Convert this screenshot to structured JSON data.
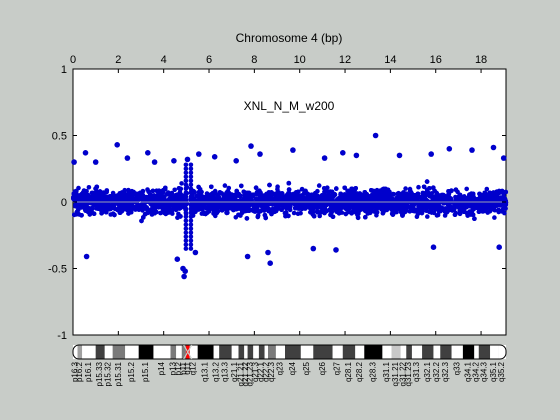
{
  "chart_data": {
    "type": "scatter",
    "title": "Chromosome 4 (bp)",
    "annotation": "XNL_N_M_w200",
    "x_tick_labels": [
      "0",
      "2",
      "4",
      "6",
      "8",
      "10",
      "12",
      "14",
      "16",
      "18"
    ],
    "y_tick_labels": [
      "1",
      "0.5",
      "0",
      "-0.5",
      "-1"
    ],
    "x_ticks": [
      0,
      2,
      4,
      6,
      8,
      10,
      12,
      14,
      16,
      18
    ],
    "y_ticks": [
      1,
      0.5,
      0,
      -0.5,
      -1
    ],
    "xlim": [
      0,
      19.1
    ],
    "ylim": [
      -1,
      1
    ],
    "marker_color": "#0000cc",
    "baseline_color": "#9aa0b4",
    "series": [
      {
        "points_summary": "dense band of points across the chromosome, mostly between -0.3 and 0.3, gap near 5.0-5.2 (centromere)",
        "outliers": [
          {
            "x": 0.05,
            "y": 0.3
          },
          {
            "x": 0.55,
            "y": 0.37
          },
          {
            "x": 0.6,
            "y": -0.41
          },
          {
            "x": 1.0,
            "y": 0.3
          },
          {
            "x": 1.95,
            "y": 0.43
          },
          {
            "x": 2.4,
            "y": 0.33
          },
          {
            "x": 3.3,
            "y": 0.37
          },
          {
            "x": 3.6,
            "y": 0.3
          },
          {
            "x": 4.45,
            "y": 0.31
          },
          {
            "x": 4.6,
            "y": -0.43
          },
          {
            "x": 4.85,
            "y": -0.5
          },
          {
            "x": 4.9,
            "y": -0.56
          },
          {
            "x": 4.95,
            "y": -0.52
          },
          {
            "x": 5.05,
            "y": 0.32
          },
          {
            "x": 5.4,
            "y": -0.38
          },
          {
            "x": 5.55,
            "y": 0.36
          },
          {
            "x": 6.25,
            "y": 0.34
          },
          {
            "x": 7.2,
            "y": 0.31
          },
          {
            "x": 7.7,
            "y": -0.41
          },
          {
            "x": 7.85,
            "y": 0.42
          },
          {
            "x": 8.25,
            "y": 0.36
          },
          {
            "x": 8.6,
            "y": -0.38
          },
          {
            "x": 8.7,
            "y": -0.46
          },
          {
            "x": 9.7,
            "y": 0.39
          },
          {
            "x": 10.6,
            "y": -0.35
          },
          {
            "x": 11.1,
            "y": 0.33
          },
          {
            "x": 11.6,
            "y": -0.36
          },
          {
            "x": 11.9,
            "y": 0.37
          },
          {
            "x": 12.5,
            "y": 0.35
          },
          {
            "x": 13.35,
            "y": 0.5
          },
          {
            "x": 14.4,
            "y": 0.35
          },
          {
            "x": 15.8,
            "y": 0.36
          },
          {
            "x": 15.9,
            "y": -0.34
          },
          {
            "x": 16.6,
            "y": 0.4
          },
          {
            "x": 17.6,
            "y": 0.39
          },
          {
            "x": 18.55,
            "y": 0.41
          },
          {
            "x": 18.8,
            "y": -0.34
          },
          {
            "x": 19.0,
            "y": 0.33
          }
        ]
      }
    ]
  },
  "ideogram": {
    "bands": [
      {
        "label": "p16.3",
        "start": 0.0,
        "end": 0.2,
        "color": "#ffffff"
      },
      {
        "label": "p16.2",
        "start": 0.2,
        "end": 0.4,
        "color": "#a0a0a0"
      },
      {
        "label": "p16.1",
        "start": 0.4,
        "end": 1.0,
        "color": "#ffffff"
      },
      {
        "label": "p15.33",
        "start": 1.0,
        "end": 1.4,
        "color": "#404040"
      },
      {
        "label": "p15.32",
        "start": 1.4,
        "end": 1.75,
        "color": "#ffffff"
      },
      {
        "label": "p15.31",
        "start": 1.75,
        "end": 2.3,
        "color": "#7a7a7a"
      },
      {
        "label": "p15.2",
        "start": 2.3,
        "end": 2.9,
        "color": "#ffffff"
      },
      {
        "label": "p15.1",
        "start": 2.9,
        "end": 3.55,
        "color": "#000000"
      },
      {
        "label": "p14",
        "start": 3.55,
        "end": 4.3,
        "color": "#ffffff"
      },
      {
        "label": "p13",
        "start": 4.3,
        "end": 4.55,
        "color": "#7a7a7a"
      },
      {
        "label": "p12",
        "start": 4.55,
        "end": 4.8,
        "color": "#ffffff"
      },
      {
        "label": "p11",
        "start": 4.8,
        "end": 4.98,
        "color": "#7a7a7a"
      },
      {
        "label": "q11",
        "start": 4.98,
        "end": 5.15,
        "color": "#ff0000"
      },
      {
        "label": "q12",
        "start": 5.15,
        "end": 5.5,
        "color": "#ffffff"
      },
      {
        "label": "q13.1",
        "start": 5.5,
        "end": 6.2,
        "color": "#000000"
      },
      {
        "label": "q13.2",
        "start": 6.2,
        "end": 6.45,
        "color": "#ffffff"
      },
      {
        "label": "q13.3",
        "start": 6.45,
        "end": 7.0,
        "color": "#404040"
      },
      {
        "label": "q21.1",
        "start": 7.0,
        "end": 7.3,
        "color": "#ffffff"
      },
      {
        "label": "q21.21",
        "start": 7.3,
        "end": 7.55,
        "color": "#404040"
      },
      {
        "label": "q21.22",
        "start": 7.55,
        "end": 7.7,
        "color": "#ffffff"
      },
      {
        "label": "q21.23",
        "start": 7.7,
        "end": 7.95,
        "color": "#404040"
      },
      {
        "label": "q21.3",
        "start": 7.95,
        "end": 8.2,
        "color": "#ffffff"
      },
      {
        "label": "q22.1",
        "start": 8.2,
        "end": 8.45,
        "color": "#404040"
      },
      {
        "label": "q22.2",
        "start": 8.45,
        "end": 8.6,
        "color": "#ffffff"
      },
      {
        "label": "q22.3",
        "start": 8.6,
        "end": 8.95,
        "color": "#7a7a7a"
      },
      {
        "label": "q23",
        "start": 8.95,
        "end": 9.35,
        "color": "#ffffff"
      },
      {
        "label": "q24",
        "start": 9.35,
        "end": 10.05,
        "color": "#404040"
      },
      {
        "label": "q25",
        "start": 10.05,
        "end": 10.6,
        "color": "#ffffff"
      },
      {
        "label": "q26",
        "start": 10.6,
        "end": 11.45,
        "color": "#404040"
      },
      {
        "label": "q27",
        "start": 11.45,
        "end": 11.9,
        "color": "#ffffff"
      },
      {
        "label": "q28.1",
        "start": 11.9,
        "end": 12.45,
        "color": "#404040"
      },
      {
        "label": "q28.2",
        "start": 12.45,
        "end": 12.85,
        "color": "#ffffff"
      },
      {
        "label": "q28.3",
        "start": 12.85,
        "end": 13.65,
        "color": "#000000"
      },
      {
        "label": "q31.1",
        "start": 13.65,
        "end": 14.05,
        "color": "#ffffff"
      },
      {
        "label": "q31.21",
        "start": 14.05,
        "end": 14.45,
        "color": "#c8c8c8"
      },
      {
        "label": "q31.22",
        "start": 14.45,
        "end": 14.7,
        "color": "#ffffff"
      },
      {
        "label": "q31.23",
        "start": 14.7,
        "end": 14.95,
        "color": "#404040"
      },
      {
        "label": "q31.3",
        "start": 14.95,
        "end": 15.4,
        "color": "#ffffff"
      },
      {
        "label": "q32.1",
        "start": 15.4,
        "end": 15.9,
        "color": "#404040"
      },
      {
        "label": "q32.2",
        "start": 15.9,
        "end": 16.2,
        "color": "#ffffff"
      },
      {
        "label": "q32.3",
        "start": 16.2,
        "end": 16.7,
        "color": "#404040"
      },
      {
        "label": "q33",
        "start": 16.7,
        "end": 17.2,
        "color": "#ffffff"
      },
      {
        "label": "q34.1",
        "start": 17.2,
        "end": 17.7,
        "color": "#000000"
      },
      {
        "label": "q34.2",
        "start": 17.7,
        "end": 17.9,
        "color": "#ffffff"
      },
      {
        "label": "q34.3",
        "start": 17.9,
        "end": 18.4,
        "color": "#404040"
      },
      {
        "label": "q35.1",
        "start": 18.4,
        "end": 18.75,
        "color": "#ffffff"
      },
      {
        "label": "q35.2",
        "start": 18.75,
        "end": 19.1,
        "color": "#ffffff"
      }
    ]
  }
}
